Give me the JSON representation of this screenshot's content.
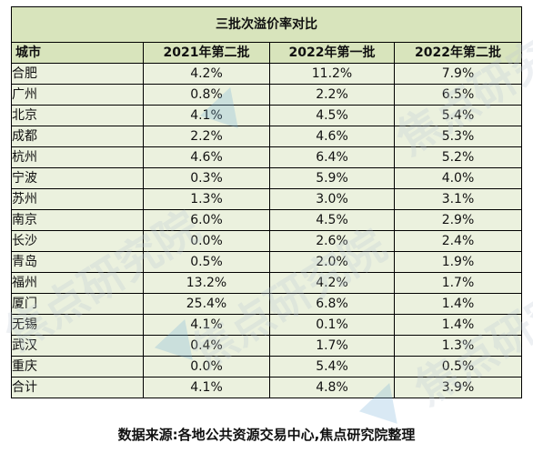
{
  "table": {
    "title": "三批次溢价率对比",
    "headers": [
      "城市",
      "2021年第二批",
      "2022年第一批",
      "2022年第二批"
    ],
    "rows": [
      [
        "合肥",
        "4.2%",
        "11.2%",
        "7.9%"
      ],
      [
        "广州",
        "0.8%",
        "2.2%",
        "6.5%"
      ],
      [
        "北京",
        "4.1%",
        "4.5%",
        "5.4%"
      ],
      [
        "成都",
        "2.2%",
        "4.6%",
        "5.3%"
      ],
      [
        "杭州",
        "4.6%",
        "6.4%",
        "5.2%"
      ],
      [
        "宁波",
        "0.3%",
        "5.9%",
        "4.0%"
      ],
      [
        "苏州",
        "1.3%",
        "3.0%",
        "3.1%"
      ],
      [
        "南京",
        "6.0%",
        "4.5%",
        "2.9%"
      ],
      [
        "长沙",
        "0.0%",
        "2.6%",
        "2.4%"
      ],
      [
        "青岛",
        "0.5%",
        "2.0%",
        "1.9%"
      ],
      [
        "福州",
        "13.2%",
        "4.2%",
        "1.7%"
      ],
      [
        "厦门",
        "25.4%",
        "6.8%",
        "1.4%"
      ],
      [
        "无锡",
        "4.1%",
        "0.1%",
        "1.4%"
      ],
      [
        "武汉",
        "0.4%",
        "1.7%",
        "1.3%"
      ],
      [
        "重庆",
        "0.0%",
        "5.4%",
        "0.5%"
      ],
      [
        "合计",
        "4.1%",
        "4.8%",
        "3.9%"
      ]
    ]
  },
  "source_note": "数据来源:各地公共资源交易中心,焦点研究院整理",
  "watermarks": [
    {
      "text": "焦点研究院"
    },
    {
      "text": "焦点研究院"
    },
    {
      "text": "焦点研究院"
    },
    {
      "text": "焦点研究院"
    }
  ],
  "colors": {
    "header_fill": "#d8e4bc",
    "body_fill": "#ebf1de",
    "border": "#000000",
    "watermark_logo": "#78afd7"
  }
}
